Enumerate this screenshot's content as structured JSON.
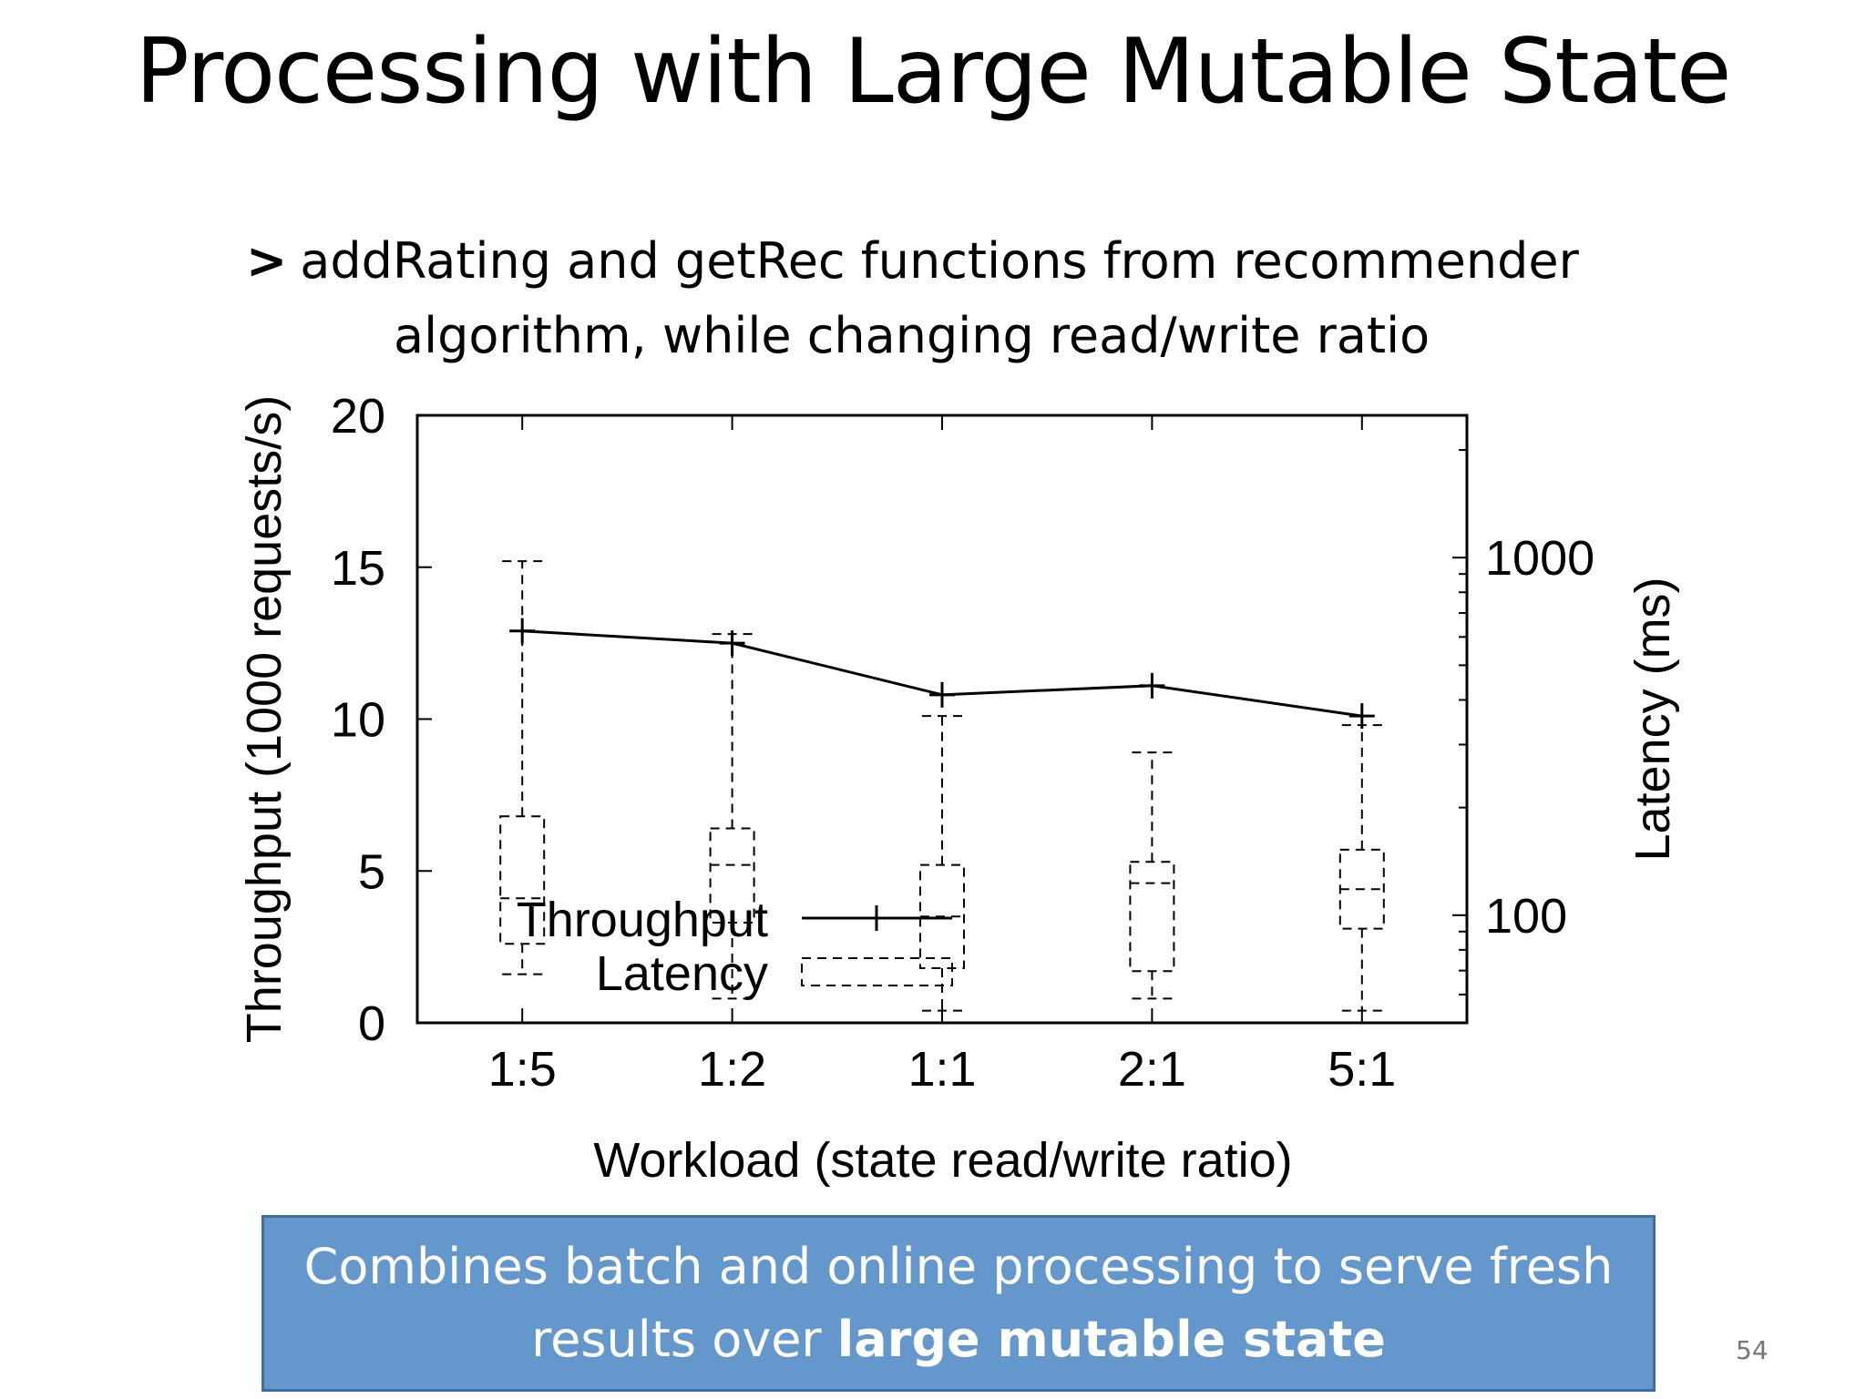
{
  "slide": {
    "title": "Processing with Large Mutable State",
    "bullet_marker": ">",
    "bullet_line1": "addRating and getRec functions from recommender",
    "bullet_line2": "algorithm, while changing read/write ratio",
    "callout_line1": "Combines batch and online processing to serve fresh",
    "callout_line2_prefix": "results over ",
    "callout_line2_bold": "large mutable state",
    "page_number": "54"
  },
  "chart_data": {
    "type": "line",
    "xlabel": "Workload (state read/write ratio)",
    "ylabel": "Throughput (1000 requests/s)",
    "y2label": "Latency (ms)",
    "categories": [
      "1:5",
      "1:2",
      "1:1",
      "2:1",
      "5:1"
    ],
    "ylim": [
      0,
      20
    ],
    "yticks": [
      0,
      5,
      10,
      15,
      20
    ],
    "y2lim": [
      50,
      2500
    ],
    "y2scale": "log",
    "y2ticks": [
      100,
      1000
    ],
    "legend_placement": "bottom-left",
    "series": [
      {
        "name": "Throughput",
        "type": "line",
        "values": [
          12.9,
          12.5,
          10.8,
          11.1,
          10.1
        ]
      },
      {
        "name": "Latency",
        "type": "box",
        "axis": "right",
        "boxes": [
          {
            "whisker_low": 1.6,
            "q1": 2.6,
            "median": 4.1,
            "q3": 6.8,
            "whisker_high": 15.2
          },
          {
            "whisker_low": 0.8,
            "q1": 3.3,
            "median": 5.2,
            "q3": 6.4,
            "whisker_high": 12.8
          },
          {
            "whisker_low": 0.4,
            "q1": 1.8,
            "median": 3.5,
            "q3": 5.2,
            "whisker_high": 10.1
          },
          {
            "whisker_low": 0.8,
            "q1": 1.7,
            "median": 4.6,
            "q3": 5.3,
            "whisker_high": 8.9
          },
          {
            "whisker_low": 0.4,
            "q1": 3.1,
            "median": 4.4,
            "q3": 5.7,
            "whisker_high": 9.8
          }
        ]
      }
    ]
  }
}
